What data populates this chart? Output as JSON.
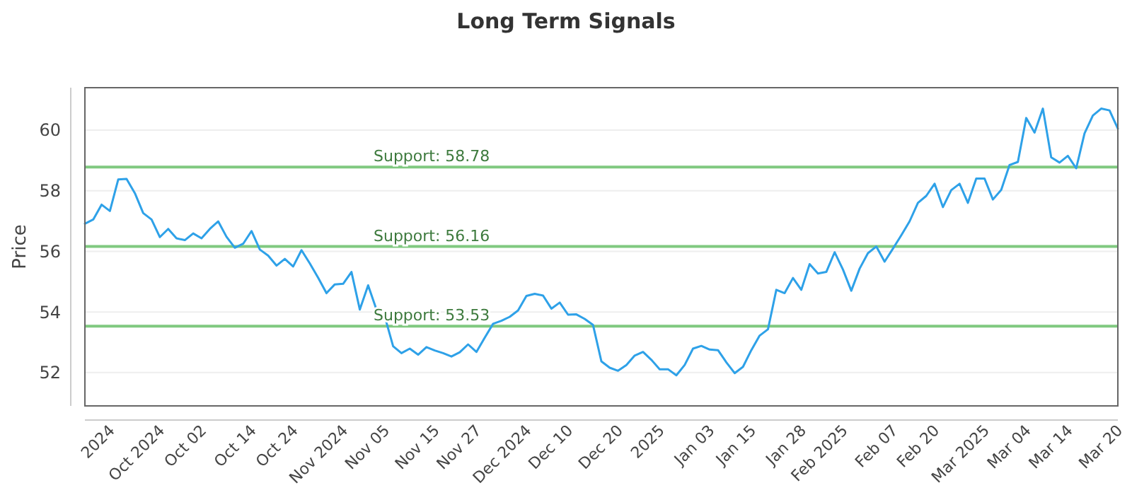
{
  "chart_data": {
    "type": "line",
    "title": "Long Term Signals",
    "ylabel": "Price",
    "categories": [
      null,
      null,
      null,
      "2024",
      null,
      null,
      null,
      null,
      null,
      "Oct 2024",
      null,
      null,
      null,
      null,
      "Oct 02",
      null,
      null,
      null,
      null,
      null,
      "Oct 14",
      null,
      null,
      null,
      null,
      "Oct 24",
      null,
      null,
      null,
      null,
      null,
      "Nov 2024",
      null,
      null,
      null,
      null,
      "Nov 05",
      null,
      null,
      null,
      null,
      null,
      "Nov 15",
      null,
      null,
      null,
      null,
      "Nov 27",
      null,
      null,
      null,
      null,
      null,
      "Dec 2024",
      null,
      null,
      null,
      null,
      "Dec 10",
      null,
      null,
      null,
      null,
      null,
      "Dec 20",
      null,
      null,
      null,
      null,
      "2025",
      null,
      null,
      null,
      null,
      null,
      "Jan 03",
      null,
      null,
      null,
      null,
      "Jan 15",
      null,
      null,
      null,
      null,
      null,
      "Jan 28",
      null,
      null,
      null,
      null,
      "Feb 2025",
      null,
      null,
      null,
      null,
      null,
      "Feb 07",
      null,
      null,
      null,
      null,
      "Feb 20",
      null,
      null,
      null,
      null,
      null,
      "Mar 2025",
      null,
      null,
      null,
      null,
      "Mar 04",
      null,
      null,
      null,
      null,
      "Mar 14",
      null,
      null,
      null,
      null,
      null,
      "Mar 20"
    ],
    "series": [
      {
        "color": "#2ea1e8",
        "values": [
          56.91,
          57.05,
          57.54,
          57.33,
          58.37,
          58.39,
          57.92,
          57.26,
          57.05,
          56.47,
          56.74,
          56.43,
          56.37,
          56.59,
          56.43,
          56.74,
          56.99,
          56.48,
          56.12,
          56.25,
          56.67,
          56.06,
          55.86,
          55.53,
          55.75,
          55.5,
          56.04,
          55.6,
          55.13,
          54.62,
          54.91,
          54.93,
          55.32,
          54.08,
          54.88,
          54.08,
          53.85,
          52.87,
          52.64,
          52.79,
          52.59,
          52.84,
          52.73,
          52.64,
          52.53,
          52.67,
          52.93,
          52.68,
          53.15,
          53.61,
          53.71,
          53.84,
          54.05,
          54.53,
          54.6,
          54.54,
          54.11,
          54.31,
          53.91,
          53.92,
          53.77,
          53.57,
          52.37,
          52.16,
          52.06,
          52.25,
          52.56,
          52.68,
          52.42,
          52.11,
          52.11,
          51.91,
          52.25,
          52.79,
          52.88,
          52.76,
          52.74,
          52.34,
          51.98,
          52.19,
          52.74,
          53.22,
          53.43,
          54.73,
          54.62,
          55.12,
          54.73,
          55.58,
          55.27,
          55.32,
          55.97,
          55.4,
          54.7,
          55.43,
          55.94,
          56.16,
          55.66,
          56.09,
          56.53,
          56.99,
          57.6,
          57.83,
          58.23,
          57.46,
          58.02,
          58.23,
          57.6,
          58.4,
          58.4,
          57.71,
          58.03,
          58.85,
          58.95,
          60.4,
          59.92,
          60.71,
          59.1,
          58.93,
          59.15,
          58.74,
          59.89,
          60.48,
          60.71,
          60.65,
          60.05
        ]
      }
    ],
    "ylim": [
      50.9,
      61.4
    ],
    "yticks": [
      52,
      54,
      56,
      58,
      60
    ],
    "grid": "y",
    "marker": "none",
    "line_style": "solid",
    "ref_lines": [
      {
        "axis": "y",
        "value": 58.78,
        "label": "Support: 58.78",
        "color": "#80c980"
      },
      {
        "axis": "y",
        "value": 56.16,
        "label": "Support: 56.16",
        "color": "#80c980"
      },
      {
        "axis": "y",
        "value": 53.53,
        "label": "Support: 53.53",
        "color": "#80c980"
      }
    ]
  }
}
